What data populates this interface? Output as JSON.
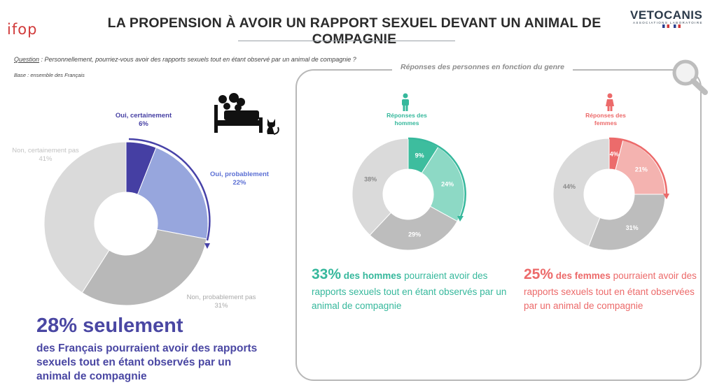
{
  "header": {
    "logo_left": "ifop",
    "title": "LA PROPENSION À AVOIR UN RAPPORT SEXUEL DEVANT UN ANIMAL DE COMPAGNIE",
    "logo_right": "VETOCANIS",
    "logo_right_sub": "ASSOCIATIONS LABORATOIRE"
  },
  "question": {
    "label": "Question",
    "text": " : Personnellement, pourriez-vous avoir des rapports sexuels tout en étant observé par un animal de compagnie ?"
  },
  "base": "Base : ensemble des  Français",
  "icons": [
    "bed-couple-icon",
    "cat-icon",
    "magnifier-icon",
    "male-person-icon",
    "female-person-icon"
  ],
  "colors": {
    "oui_certainement": "#453fa3",
    "oui_probablement": "#97a6dd",
    "non_probablement": "#b8b8b8",
    "non_certainement": "#dadada",
    "men_dark": "#3dbd9e",
    "men_light": "#8dd9c5",
    "women_dark": "#ec6b6b",
    "women_light": "#f4b3b0",
    "grey_dark": "#bdbdbd",
    "grey_light": "#dadada"
  },
  "chart_data": [
    {
      "type": "pie",
      "donut": true,
      "name": "total",
      "categories": [
        "Oui, certainement",
        "Oui, probablement",
        "Non, probablement pas",
        "Non, certainement pas"
      ],
      "values": [
        6,
        22,
        31,
        41
      ],
      "labels": [
        "6%",
        "22%",
        "31%",
        "41%"
      ]
    },
    {
      "type": "pie",
      "donut": true,
      "name": "hommes",
      "title": "Réponses des hommes",
      "categories": [
        "Oui, certainement",
        "Oui, probablement",
        "Non, probablement pas",
        "Non, certainement pas"
      ],
      "values": [
        9,
        24,
        29,
        38
      ],
      "labels": [
        "9%",
        "24%",
        "29%",
        "38%"
      ]
    },
    {
      "type": "pie",
      "donut": true,
      "name": "femmes",
      "title": "Réponses des femmes",
      "categories": [
        "Oui, certainement",
        "Oui, probablement",
        "Non, probablement pas",
        "Non, certainement pas"
      ],
      "values": [
        4,
        21,
        31,
        44
      ],
      "labels": [
        "4%",
        "21%",
        "31%",
        "44%"
      ]
    }
  ],
  "legend_labels": {
    "oui_certainement": "Oui, certainement",
    "oui_certainement_pct": "6%",
    "oui_probablement": "Oui, probablement",
    "oui_probablement_pct": "22%",
    "non_probablement": "Non, probablement pas",
    "non_probablement_pct": "31%",
    "non_certainement": "Non, certainement pas",
    "non_certainement_pct": "41%"
  },
  "panel": {
    "title": "Réponses des personnes en fonction du genre",
    "men_header_line1": "Réponses des",
    "men_header_line2": "hommes",
    "women_header_line1": "Réponses des",
    "women_header_line2": "femmes"
  },
  "summary": {
    "total_big": "28% seulement",
    "total_text": "des Français pourraient avoir des rapports sexuels tout en étant observés par un animal de compagnie",
    "men_big": "33%",
    "men_bold": " des hommes",
    "men_text": " pourraient avoir des rapports sexuels tout en étant observés par un animal de compagnie",
    "women_big": "25%",
    "women_bold": " des femmes",
    "women_text": " pourraient avoir des rapports sexuels tout en étant observées par un animal de compagnie"
  }
}
